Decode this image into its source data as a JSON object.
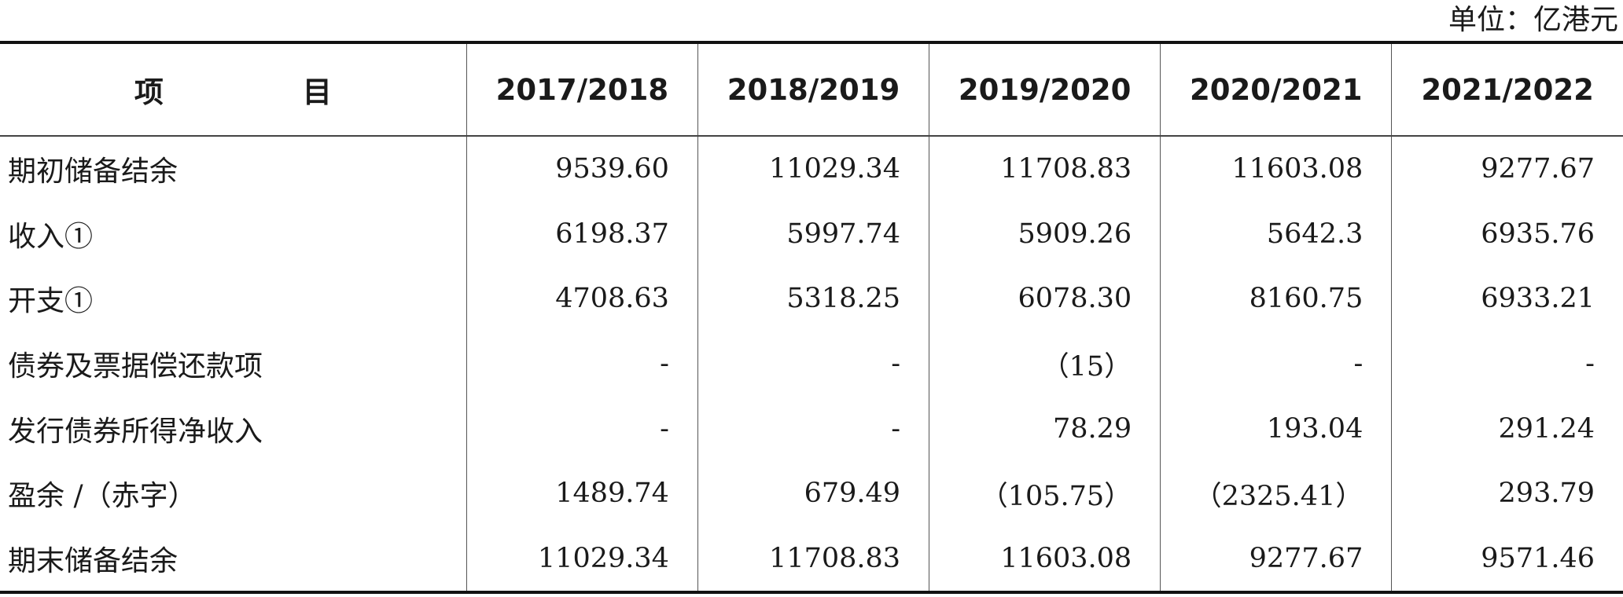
{
  "unit": "单位：亿港元",
  "table": {
    "headers": [
      "项　目",
      "2017/2018",
      "2018/2019",
      "2019/2020",
      "2020/2021",
      "2021/2022"
    ],
    "rows": [
      {
        "label": "期初储备结余",
        "values": [
          "9539.60",
          "11029.34",
          "11708.83",
          "11603.08",
          "9277.67"
        ]
      },
      {
        "label": "收入①",
        "values": [
          "6198.37",
          "5997.74",
          "5909.26",
          "5642.3",
          "6935.76"
        ]
      },
      {
        "label": "开支①",
        "values": [
          "4708.63",
          "5318.25",
          "6078.30",
          "8160.75",
          "6933.21"
        ]
      },
      {
        "label": "债券及票据偿还款项",
        "values": [
          "-",
          "-",
          "（15）",
          "-",
          "-"
        ]
      },
      {
        "label": "发行债券所得净收入",
        "values": [
          "-",
          "-",
          "78.29",
          "193.04",
          "291.24"
        ]
      },
      {
        "label": "盈余 /（赤字）",
        "values": [
          "1489.74",
          "679.49",
          "（105.75）",
          "（2325.41）",
          "293.79"
        ]
      },
      {
        "label": "期末储备结余",
        "values": [
          "11029.34",
          "11708.83",
          "11603.08",
          "9277.67",
          "9571.46"
        ]
      }
    ]
  }
}
